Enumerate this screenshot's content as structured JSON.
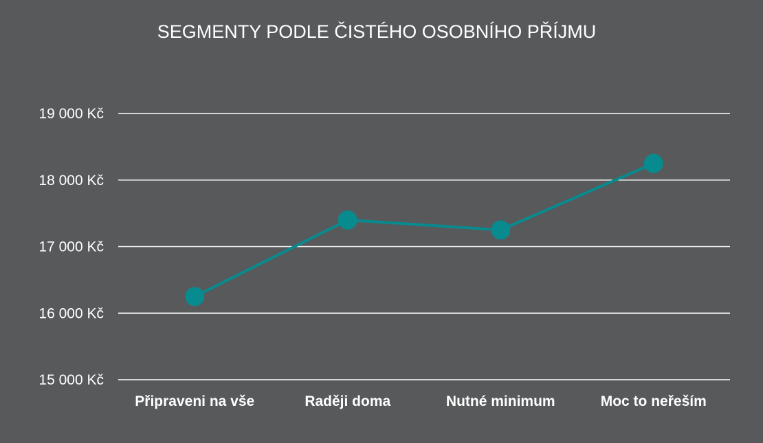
{
  "chart_data": {
    "type": "line",
    "title": "SEGMENTY PODLE ČISTÉHO OSOBNÍHO PŘÍJMU",
    "xlabel": "",
    "ylabel": "",
    "categories": [
      "Připraveni na vše",
      "Raději doma",
      "Nutné minimum",
      "Moc to neřeším"
    ],
    "series": [
      {
        "values": [
          16250,
          17400,
          17250,
          18250
        ],
        "color": "#078b8f"
      }
    ],
    "ylim": [
      15000,
      19000
    ],
    "yticks": [
      15000,
      16000,
      17000,
      18000,
      19000
    ],
    "ytick_labels": [
      "15 000 Kč",
      "16 000 Kč",
      "17 000 Kč",
      "18 000 Kč",
      "19 000 Kč"
    ],
    "grid": true,
    "legend": "none",
    "colors": {
      "background": "#58595b",
      "gridline": "#ffffff",
      "text": "#ffffff",
      "series": "#078b8f"
    }
  }
}
